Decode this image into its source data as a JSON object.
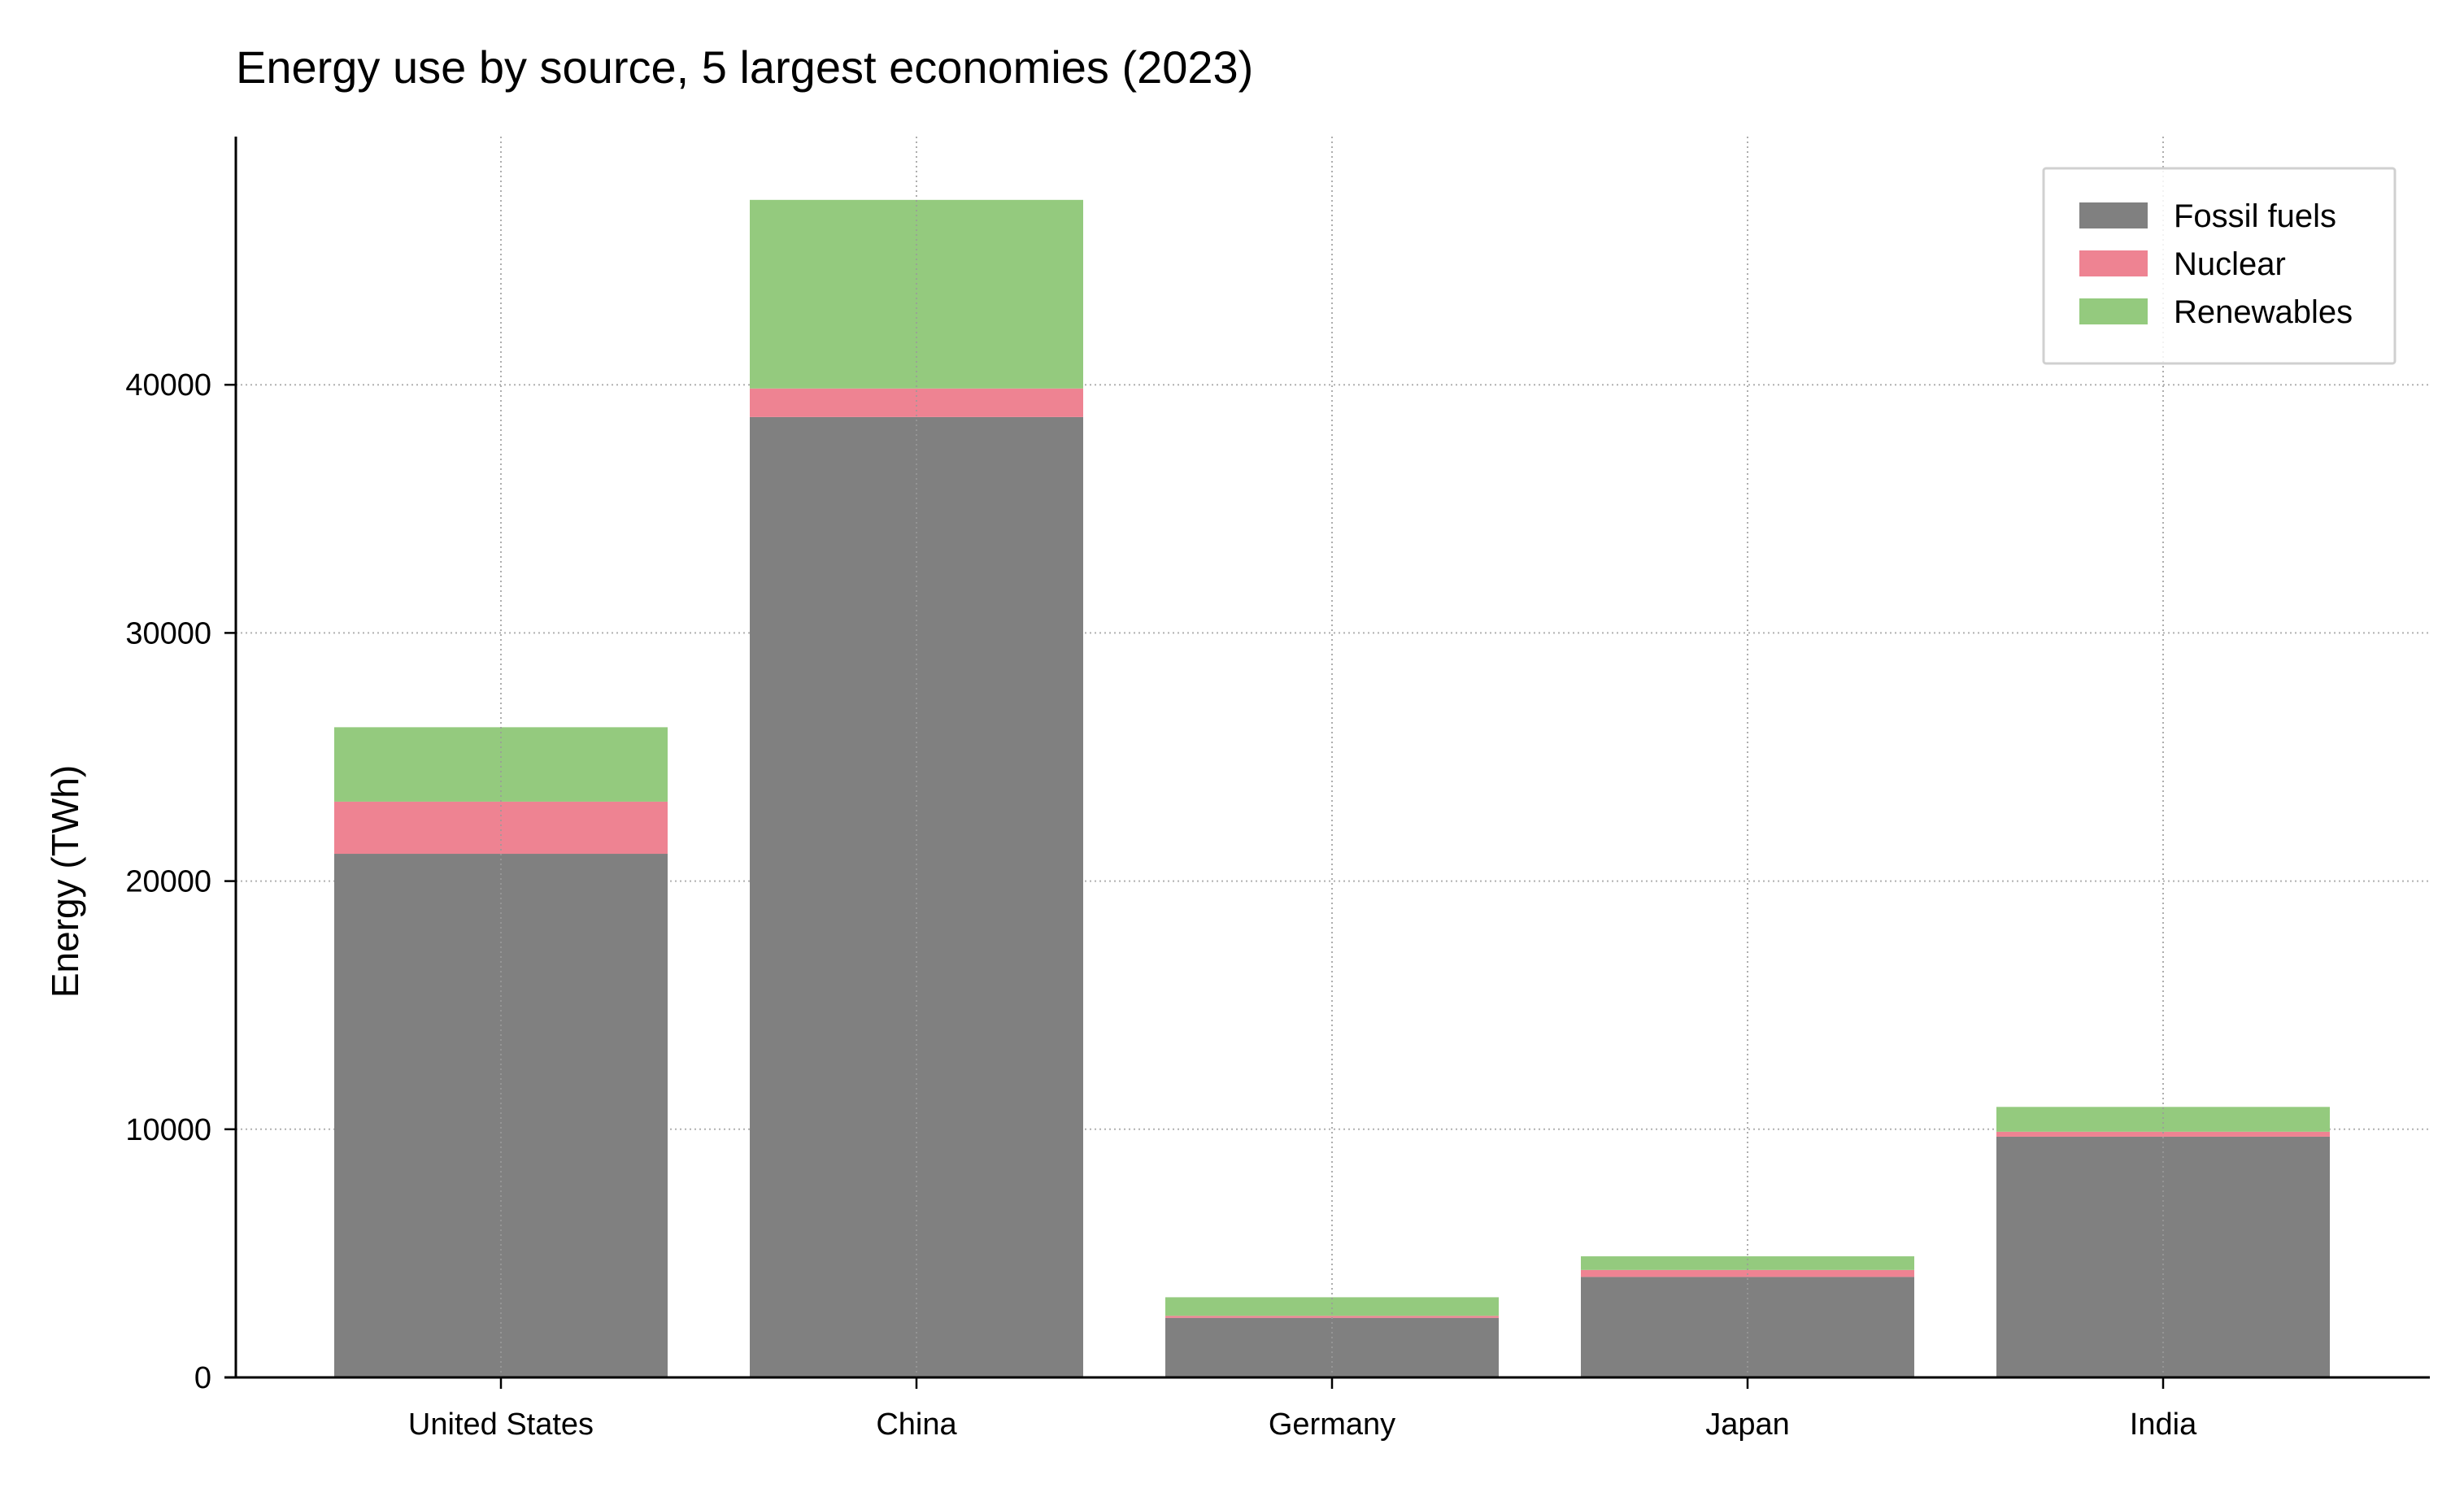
{
  "chart_data": {
    "type": "bar",
    "stacked": true,
    "title": "Energy use by source, 5 largest economies (2023)",
    "xlabel": "",
    "ylabel": "Energy (TWh)",
    "ylim": [
      0,
      50000
    ],
    "yticks": [
      0,
      10000,
      20000,
      30000,
      40000
    ],
    "ytick_labels": [
      "0",
      "10000",
      "20000",
      "30000",
      "40000"
    ],
    "categories": [
      "United States",
      "China",
      "Germany",
      "Japan",
      "India"
    ],
    "series": [
      {
        "name": "Fossil fuels",
        "color": "#808080",
        "values": [
          21100,
          38700,
          2400,
          4050,
          9700
        ]
      },
      {
        "name": "Nuclear",
        "color": "#ee8392",
        "values": [
          2100,
          1150,
          80,
          280,
          200
        ]
      },
      {
        "name": "Renewables",
        "color": "#94ca7e",
        "values": [
          3000,
          7600,
          750,
          550,
          1000
        ]
      }
    ],
    "grid": true,
    "grid_style": "dotted",
    "legend_position": "top-right"
  }
}
